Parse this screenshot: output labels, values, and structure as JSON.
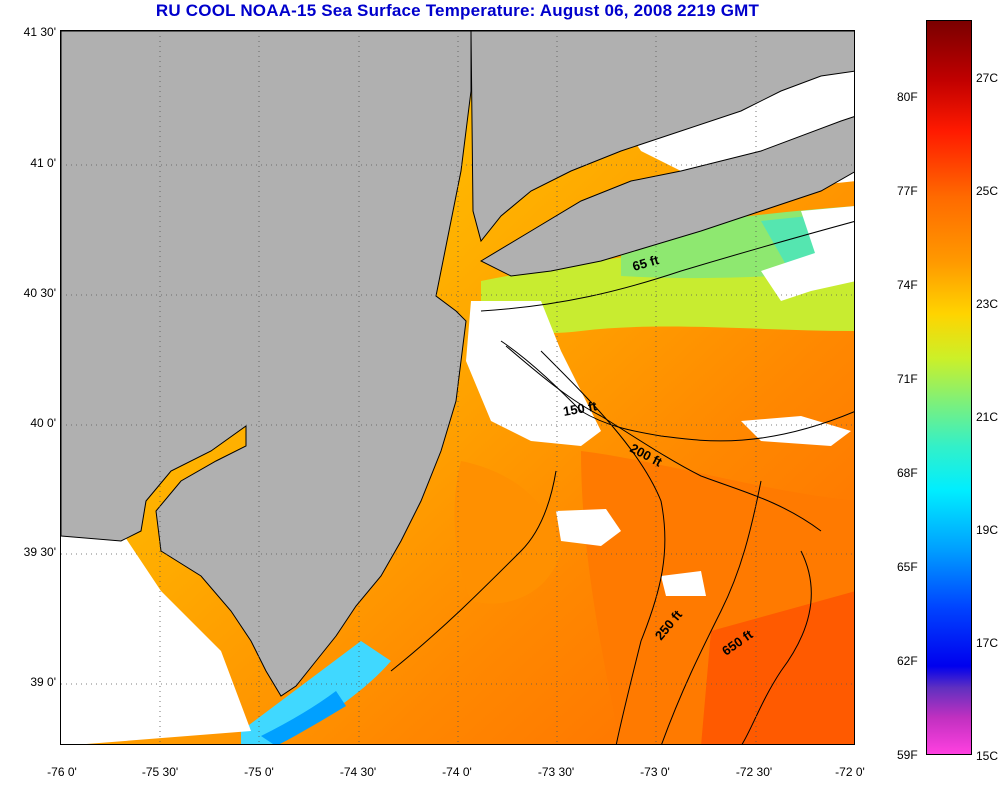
{
  "title": "RU COOL  NOAA-15  Sea Surface Temperature:  August 06, 2008 2219 GMT",
  "lat_ticks": [
    "41 30'",
    "41 0'",
    "40 30'",
    "40 0'",
    "39 30'",
    "39 0'"
  ],
  "lon_ticks": [
    "-76 0'",
    "-75 30'",
    "-75 0'",
    "-74 30'",
    "-74 0'",
    "-73 30'",
    "-73 0'",
    "-72 30'",
    "-72 0'"
  ],
  "colorbar_f": [
    "80F",
    "77F",
    "74F",
    "71F",
    "68F",
    "65F",
    "62F",
    "59F"
  ],
  "colorbar_c": [
    "27C",
    "25C",
    "23C",
    "21C",
    "19C",
    "17C",
    "15C"
  ],
  "contours": [
    "65 ft",
    "150 ft",
    "200 ft",
    "250 ft",
    "650 ft"
  ],
  "colors": {
    "land": "#b0b0b0",
    "cloud": "#ffffff",
    "title": "#0000cc",
    "warm": "#ff8c00",
    "mid": "#ffd000",
    "cool": "#9ee85a"
  }
}
